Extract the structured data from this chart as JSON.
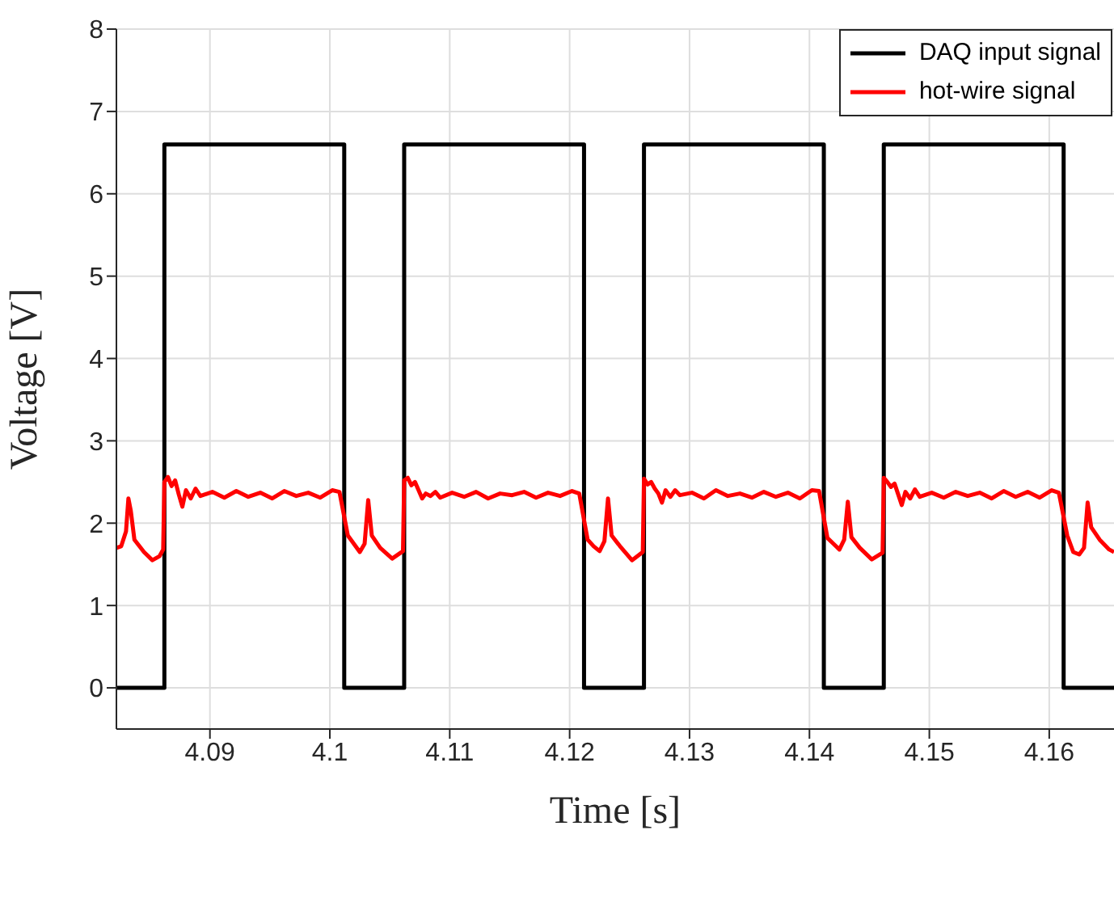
{
  "chart_data": {
    "type": "line",
    "xlabel": "Time [s]",
    "ylabel": "Voltage [V]",
    "xlim": [
      4.0822,
      4.1654
    ],
    "xticks": [
      4.09,
      4.1,
      4.11,
      4.12,
      4.13,
      4.14,
      4.15,
      4.16
    ],
    "ylim": [
      -0.5,
      8
    ],
    "yticks": [
      0,
      1,
      2,
      3,
      4,
      5,
      6,
      7,
      8
    ],
    "grid": true,
    "legend": "top right",
    "marker": "none",
    "line_style": "solid",
    "series": [
      {
        "name": "DAQ input signal",
        "color": "#000000",
        "x": [
          4.0822,
          4.0862,
          4.0862,
          4.1012,
          4.1012,
          4.1062,
          4.1062,
          4.1212,
          4.1212,
          4.1262,
          4.1262,
          4.1412,
          4.1412,
          4.1462,
          4.1462,
          4.1612,
          4.1612,
          4.1654
        ],
        "values": [
          0,
          0,
          6.6,
          6.6,
          0,
          0,
          6.6,
          6.6,
          0,
          0,
          6.6,
          6.6,
          0,
          0,
          6.6,
          6.6,
          0,
          0
        ]
      },
      {
        "name": "hot-wire signal",
        "color": "#ff0000",
        "x": [
          4.0822,
          4.0826,
          4.083,
          4.0832,
          4.0834,
          4.0837,
          4.0845,
          4.0852,
          4.0858,
          4.0861,
          4.0862,
          4.0865,
          4.0868,
          4.0871,
          4.0874,
          4.0877,
          4.088,
          4.0884,
          4.0888,
          4.0892,
          4.0902,
          4.0912,
          4.0922,
          4.0932,
          4.0942,
          4.0952,
          4.0962,
          4.0972,
          4.0982,
          4.0992,
          4.1002,
          4.1008,
          4.1015,
          4.102,
          4.1025,
          4.1029,
          4.1032,
          4.1035,
          4.1042,
          4.1052,
          4.1061,
          4.1062,
          4.1065,
          4.1068,
          4.1071,
          4.1074,
          4.1077,
          4.108,
          4.1084,
          4.1088,
          4.1092,
          4.1102,
          4.1112,
          4.1122,
          4.1132,
          4.1142,
          4.1152,
          4.1162,
          4.1172,
          4.1182,
          4.1192,
          4.1202,
          4.1208,
          4.1215,
          4.122,
          4.1225,
          4.1229,
          4.1232,
          4.1235,
          4.1242,
          4.1252,
          4.1261,
          4.1262,
          4.1265,
          4.1268,
          4.1271,
          4.1274,
          4.1277,
          4.128,
          4.1284,
          4.1288,
          4.1292,
          4.1302,
          4.1312,
          4.1322,
          4.1332,
          4.1342,
          4.1352,
          4.1362,
          4.1372,
          4.1382,
          4.1392,
          4.1402,
          4.1408,
          4.1415,
          4.142,
          4.1425,
          4.1429,
          4.1432,
          4.1435,
          4.1442,
          4.1452,
          4.1461,
          4.1462,
          4.1465,
          4.1468,
          4.1471,
          4.1474,
          4.1477,
          4.148,
          4.1484,
          4.1488,
          4.1492,
          4.1502,
          4.1512,
          4.1522,
          4.1532,
          4.1542,
          4.1552,
          4.1562,
          4.1572,
          4.1582,
          4.1592,
          4.1602,
          4.1608,
          4.1615,
          4.162,
          4.1625,
          4.1629,
          4.1632,
          4.1635,
          4.1642,
          4.165,
          4.1654
        ],
        "values": [
          1.7,
          1.72,
          1.9,
          2.3,
          2.15,
          1.8,
          1.65,
          1.55,
          1.6,
          1.68,
          2.5,
          2.56,
          2.45,
          2.52,
          2.35,
          2.2,
          2.4,
          2.3,
          2.42,
          2.33,
          2.38,
          2.31,
          2.39,
          2.32,
          2.37,
          2.3,
          2.39,
          2.33,
          2.37,
          2.31,
          2.4,
          2.38,
          1.85,
          1.75,
          1.65,
          1.75,
          2.28,
          1.85,
          1.7,
          1.57,
          1.66,
          2.52,
          2.55,
          2.46,
          2.5,
          2.4,
          2.3,
          2.36,
          2.33,
          2.38,
          2.31,
          2.37,
          2.32,
          2.38,
          2.3,
          2.36,
          2.34,
          2.38,
          2.31,
          2.37,
          2.33,
          2.39,
          2.36,
          1.8,
          1.72,
          1.66,
          1.78,
          2.3,
          1.85,
          1.72,
          1.55,
          1.65,
          2.54,
          2.47,
          2.5,
          2.42,
          2.36,
          2.25,
          2.4,
          2.32,
          2.4,
          2.34,
          2.37,
          2.3,
          2.4,
          2.33,
          2.36,
          2.31,
          2.38,
          2.32,
          2.37,
          2.3,
          2.4,
          2.39,
          1.82,
          1.75,
          1.68,
          1.8,
          2.26,
          1.83,
          1.7,
          1.56,
          1.64,
          2.55,
          2.5,
          2.44,
          2.48,
          2.35,
          2.22,
          2.38,
          2.3,
          2.41,
          2.32,
          2.37,
          2.31,
          2.38,
          2.33,
          2.37,
          2.3,
          2.39,
          2.32,
          2.38,
          2.31,
          2.4,
          2.37,
          1.85,
          1.65,
          1.62,
          1.7,
          2.25,
          1.95,
          1.8,
          1.68,
          1.65
        ]
      }
    ]
  }
}
